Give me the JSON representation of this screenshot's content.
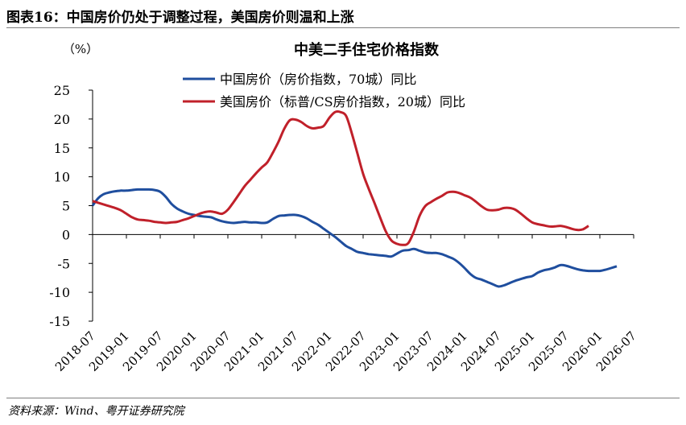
{
  "figure_title": "图表16：中国房价仍处于调整过程，美国房价则温和上涨",
  "source": "资料来源：Wind、粤开证券研究院",
  "chart_data": {
    "type": "line",
    "title": "中美二手住宅价格指数",
    "ylabel": "（%）",
    "xlabel": "",
    "ylim": [
      -15,
      25
    ],
    "yticks": [
      -15,
      -10,
      -5,
      0,
      5,
      10,
      15,
      20,
      25
    ],
    "xticks": [
      "2018-07",
      "2019-01",
      "2019-07",
      "2020-01",
      "2020-07",
      "2021-01",
      "2021-07",
      "2022-01",
      "2022-07",
      "2023-01",
      "2023-07",
      "2024-01",
      "2024-07",
      "2025-01",
      "2025-07",
      "2026-01",
      "2026-07"
    ],
    "legend_position": "top-center",
    "grid": false,
    "series": [
      {
        "name": "中国房价（房价指数，70城）同比",
        "color": "#1f4e9e",
        "start": "2018-07",
        "interval_months": 1,
        "values": [
          5.0,
          6.3,
          7.0,
          7.3,
          7.5,
          7.6,
          7.6,
          7.7,
          7.8,
          7.8,
          7.8,
          7.7,
          7.4,
          6.5,
          5.3,
          4.5,
          4.0,
          3.6,
          3.4,
          3.2,
          3.1,
          3.0,
          2.6,
          2.3,
          2.1,
          2.0,
          2.1,
          2.2,
          2.1,
          2.1,
          2.0,
          2.1,
          2.7,
          3.2,
          3.3,
          3.4,
          3.4,
          3.2,
          2.8,
          2.2,
          1.7,
          1.0,
          0.3,
          -0.4,
          -1.2,
          -2.0,
          -2.5,
          -3.0,
          -3.2,
          -3.4,
          -3.5,
          -3.6,
          -3.7,
          -3.8,
          -3.3,
          -2.8,
          -2.7,
          -2.5,
          -2.8,
          -3.1,
          -3.2,
          -3.2,
          -3.4,
          -3.8,
          -4.2,
          -4.9,
          -5.8,
          -6.8,
          -7.5,
          -7.8,
          -8.2,
          -8.6,
          -9.0,
          -8.8,
          -8.4,
          -8.0,
          -7.7,
          -7.4,
          -7.2,
          -6.6,
          -6.2,
          -6.0,
          -5.7,
          -5.3,
          -5.4,
          -5.7,
          -6.0,
          -6.2,
          -6.3,
          -6.3,
          -6.3,
          -6.1,
          -5.8,
          -5.5
        ]
      },
      {
        "name": "美国房价（标普/CS房价指数，20城）同比",
        "color": "#c0202a",
        "start": "2018-07",
        "interval_months": 1,
        "values": [
          5.8,
          5.5,
          5.2,
          4.9,
          4.6,
          4.2,
          3.6,
          3.0,
          2.6,
          2.5,
          2.4,
          2.2,
          2.1,
          2.0,
          2.1,
          2.2,
          2.5,
          2.8,
          3.2,
          3.6,
          3.9,
          4.0,
          3.8,
          3.6,
          4.3,
          5.6,
          7.0,
          8.4,
          9.5,
          10.6,
          11.6,
          12.5,
          14.2,
          16.1,
          18.3,
          19.8,
          19.9,
          19.5,
          18.8,
          18.4,
          18.5,
          18.8,
          20.2,
          21.2,
          21.2,
          20.5,
          17.5,
          14.0,
          10.5,
          7.9,
          5.5,
          3.0,
          0.6,
          -1.0,
          -1.6,
          -1.8,
          -1.5,
          0.5,
          3.2,
          4.9,
          5.6,
          6.2,
          6.7,
          7.3,
          7.4,
          7.2,
          6.8,
          6.4,
          5.7,
          4.9,
          4.3,
          4.2,
          4.3,
          4.6,
          4.6,
          4.3,
          3.6,
          2.8,
          2.1,
          1.8,
          1.6,
          1.4,
          1.4,
          1.5,
          1.3,
          1.0,
          0.8,
          0.9,
          1.5
        ]
      }
    ]
  }
}
